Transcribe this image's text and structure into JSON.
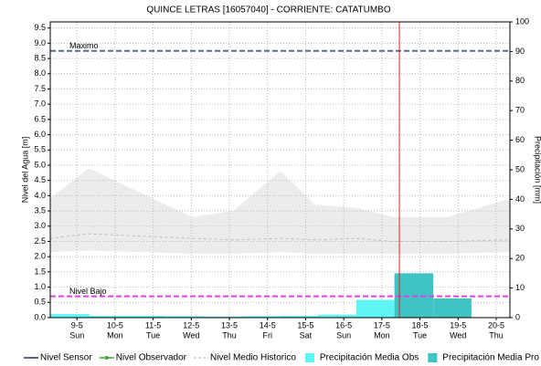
{
  "chart_data": {
    "type": "hydrograph",
    "title": "QUINCE LETRAS [16057040] - CORRIENTE: CATATUMBO",
    "y_label": "Nivel del Agua [m]",
    "y2_label": "Precipitación [mm]",
    "xlim": [
      8.3,
      20.36
    ],
    "xticks": [
      {
        "value": 9,
        "label": "9-5"
      },
      {
        "value": 10,
        "label": "10-5"
      },
      {
        "value": 11,
        "label": "11-5"
      },
      {
        "value": 12,
        "label": "12-5"
      },
      {
        "value": 13,
        "label": "13-5"
      },
      {
        "value": 14,
        "label": "14-5"
      },
      {
        "value": 15,
        "label": "15-5"
      },
      {
        "value": 16,
        "label": "16-5"
      },
      {
        "value": 17,
        "label": "17-5"
      },
      {
        "value": 18,
        "label": "18-5"
      },
      {
        "value": 19,
        "label": "19-5"
      },
      {
        "value": 20,
        "label": "20-5"
      }
    ],
    "xtick_days": [
      "Sun",
      "Mon",
      "Tue",
      "Wed",
      "Thu",
      "Fri",
      "Sat",
      "Sun",
      "Mon",
      "Tue",
      "Wed",
      "Thu"
    ],
    "ylim": [
      0,
      9.7
    ],
    "yticks": [
      {
        "value": 0,
        "label": "0.0"
      },
      0.5,
      {
        "value": 1,
        "label": "1.0"
      },
      1.5,
      {
        "value": 2,
        "label": "2.0"
      },
      2.5,
      {
        "value": 3,
        "label": "3.0"
      },
      3.5,
      {
        "value": 4,
        "label": "4.0"
      },
      4.5,
      {
        "value": 5,
        "label": "5.0"
      },
      5.5,
      {
        "value": 6,
        "label": "6.0"
      },
      6.5,
      {
        "value": 7,
        "label": "7.0"
      },
      7.5,
      {
        "value": 8,
        "label": "8.0"
      },
      8.5,
      {
        "value": 9,
        "label": "9.0"
      },
      9.5
    ],
    "y2lim": [
      0,
      100
    ],
    "y2ticks": [
      0,
      10,
      20,
      30,
      40,
      50,
      60,
      70,
      80,
      90,
      100
    ],
    "grid": true,
    "reference_lines": [
      {
        "label": "Maximo",
        "value": 8.75,
        "color": "#5a6f96"
      },
      {
        "label": "Nivel Bajo",
        "value": 0.7,
        "color": "#e83de8"
      }
    ],
    "marker_x": 17.46,
    "marker_color": "#e02020",
    "historic_band": {
      "color": "#ececec",
      "x": [
        8.3,
        9.31,
        12.02,
        13.1,
        14.34,
        15.25,
        16.33,
        17.29,
        18.73,
        20.36
      ],
      "upper": [
        3.9,
        4.9,
        3.3,
        3.5,
        4.8,
        3.7,
        3.6,
        3.3,
        3.3,
        3.9
      ],
      "lower": [
        2.15,
        2.2,
        2.1,
        2.1,
        2.15,
        2.1,
        2.1,
        2.1,
        2.1,
        2.15
      ]
    },
    "series": [
      {
        "name": "Nivel Sensor",
        "color": "#1f2a6b",
        "kind": "line"
      },
      {
        "name": "Nivel Observador",
        "color": "#3aa63a",
        "kind": "dot-line"
      },
      {
        "name": "Nivel Medio Historico",
        "color": "#bbbbbb",
        "kind": "dashed",
        "x": [
          8.3,
          9.31,
          12.02,
          13.1,
          14.34,
          15.25,
          16.33,
          17.29,
          18.73,
          20.36
        ],
        "values": [
          2.6,
          2.75,
          2.6,
          2.55,
          2.6,
          2.55,
          2.6,
          2.5,
          2.5,
          2.55
        ]
      },
      {
        "name": "Precipitación Media Obs",
        "color": "#5ff5f5",
        "kind": "bars",
        "axis": "y2",
        "bins": [
          8.3,
          9.33,
          10.33,
          11.33,
          12.33,
          13.33,
          14.33,
          15.33,
          16.33,
          17.33
        ],
        "values": [
          1.2,
          0.6,
          0.6,
          0.5,
          0.4,
          0.5,
          0.6,
          1.0,
          6.0
        ]
      },
      {
        "name": "Precipitación Media Pro",
        "color": "#3fc4c4",
        "kind": "bars",
        "axis": "y2",
        "bins": [
          17.33,
          18.35,
          19.35
        ],
        "values": [
          15,
          6.5
        ]
      }
    ]
  }
}
